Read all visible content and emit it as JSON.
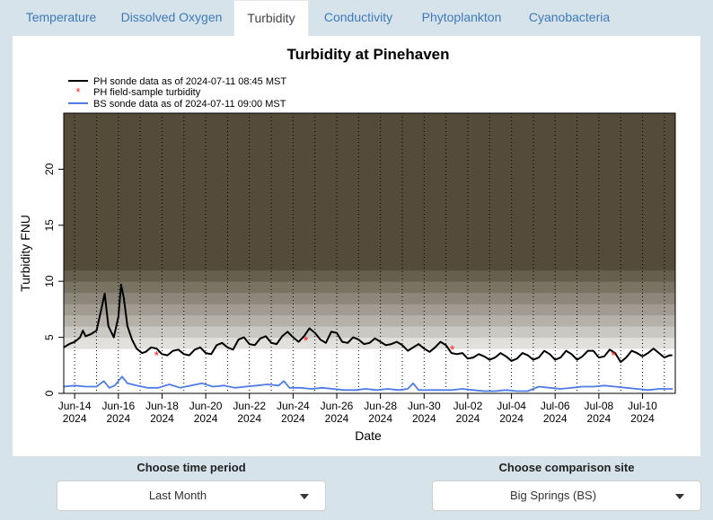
{
  "tabs": [
    {
      "label": "Temperature",
      "active": false
    },
    {
      "label": "Dissolved Oxygen",
      "active": false
    },
    {
      "label": "Turbidity",
      "active": true
    },
    {
      "label": "Conductivity",
      "active": false
    },
    {
      "label": "Phytoplankton",
      "active": false
    },
    {
      "label": "Cyanobacteria",
      "active": false
    }
  ],
  "controls": {
    "time_period_label": "Choose time period",
    "time_period_value": "Last Month",
    "comparison_label": "Choose comparison site",
    "comparison_value": "Big Springs (BS)"
  },
  "chart_data": {
    "type": "line",
    "title": "Turbidity at Pinehaven",
    "xlabel": "Date",
    "ylabel": "Turbidity FNU",
    "ylim": [
      0,
      25
    ],
    "yticks": [
      0,
      5,
      10,
      15,
      20
    ],
    "xlim": [
      "2024-06-13T12:00",
      "2024-07-11T12:00"
    ],
    "xticks": [
      {
        "date": "2024-06-14",
        "label": "Jun-14",
        "year": "2024"
      },
      {
        "date": "2024-06-16",
        "label": "Jun-16",
        "year": "2024"
      },
      {
        "date": "2024-06-18",
        "label": "Jun-18",
        "year": "2024"
      },
      {
        "date": "2024-06-20",
        "label": "Jun-20",
        "year": "2024"
      },
      {
        "date": "2024-06-22",
        "label": "Jun-22",
        "year": "2024"
      },
      {
        "date": "2024-06-24",
        "label": "Jun-24",
        "year": "2024"
      },
      {
        "date": "2024-06-26",
        "label": "Jun-26",
        "year": "2024"
      },
      {
        "date": "2024-06-28",
        "label": "Jun-28",
        "year": "2024"
      },
      {
        "date": "2024-06-30",
        "label": "Jun-30",
        "year": "2024"
      },
      {
        "date": "2024-07-02",
        "label": "Jul-02",
        "year": "2024"
      },
      {
        "date": "2024-07-04",
        "label": "Jul-04",
        "year": "2024"
      },
      {
        "date": "2024-07-06",
        "label": "Jul-06",
        "year": "2024"
      },
      {
        "date": "2024-07-08",
        "label": "Jul-08",
        "year": "2024"
      },
      {
        "date": "2024-07-10",
        "label": "Jul-10",
        "year": "2024"
      }
    ],
    "legend": [
      {
        "text": "PH sonde data as of 2024-07-11 08:45 MST",
        "type": "line",
        "color": "#000000"
      },
      {
        "text": "PH field-sample turbidity",
        "type": "point",
        "color": "#ff2020"
      },
      {
        "text": "BS sonde data as of 2024-07-11 09:00 MST",
        "type": "line",
        "color": "#4f7be8"
      }
    ],
    "legend_position": "top-left",
    "background": "gradient bands from white (low turbidity) to dark olive (high turbidity)",
    "vertical_gridlines": "dotted at midnight each day",
    "series": [
      {
        "name": "PH sonde data as of 2024-07-11 08:45 MST",
        "color": "#000000",
        "points": [
          [
            "2024-06-13T12:00",
            4.1
          ],
          [
            "2024-06-13T18:00",
            4.4
          ],
          [
            "2024-06-14T00:00",
            4.6
          ],
          [
            "2024-06-14T06:00",
            5.0
          ],
          [
            "2024-06-14T09:00",
            5.6
          ],
          [
            "2024-06-14T12:00",
            5.1
          ],
          [
            "2024-06-14T18:00",
            5.3
          ],
          [
            "2024-06-15T00:00",
            5.6
          ],
          [
            "2024-06-15T05:00",
            7.4
          ],
          [
            "2024-06-15T09:00",
            8.9
          ],
          [
            "2024-06-15T13:00",
            6.0
          ],
          [
            "2024-06-15T19:00",
            5.0
          ],
          [
            "2024-06-16T00:00",
            6.8
          ],
          [
            "2024-06-16T03:00",
            9.7
          ],
          [
            "2024-06-16T06:00",
            8.5
          ],
          [
            "2024-06-16T10:00",
            6.0
          ],
          [
            "2024-06-16T15:00",
            4.8
          ],
          [
            "2024-06-16T20:00",
            4.0
          ],
          [
            "2024-06-17T02:00",
            3.6
          ],
          [
            "2024-06-17T06:00",
            3.7
          ],
          [
            "2024-06-17T12:00",
            4.1
          ],
          [
            "2024-06-17T18:00",
            4.0
          ],
          [
            "2024-06-18T00:00",
            3.5
          ],
          [
            "2024-06-18T06:00",
            3.4
          ],
          [
            "2024-06-18T12:00",
            3.8
          ],
          [
            "2024-06-18T18:00",
            3.9
          ],
          [
            "2024-06-19T00:00",
            3.5
          ],
          [
            "2024-06-19T06:00",
            3.4
          ],
          [
            "2024-06-19T12:00",
            3.9
          ],
          [
            "2024-06-19T18:00",
            4.1
          ],
          [
            "2024-06-20T00:00",
            3.6
          ],
          [
            "2024-06-20T06:00",
            3.5
          ],
          [
            "2024-06-20T12:00",
            4.3
          ],
          [
            "2024-06-20T18:00",
            4.5
          ],
          [
            "2024-06-21T00:00",
            4.1
          ],
          [
            "2024-06-21T06:00",
            3.9
          ],
          [
            "2024-06-21T12:00",
            4.8
          ],
          [
            "2024-06-21T18:00",
            5.0
          ],
          [
            "2024-06-22T00:00",
            4.4
          ],
          [
            "2024-06-22T06:00",
            4.3
          ],
          [
            "2024-06-22T12:00",
            4.9
          ],
          [
            "2024-06-22T18:00",
            5.1
          ],
          [
            "2024-06-23T00:00",
            4.5
          ],
          [
            "2024-06-23T06:00",
            4.4
          ],
          [
            "2024-06-23T12:00",
            5.1
          ],
          [
            "2024-06-23T18:00",
            5.5
          ],
          [
            "2024-06-24T00:00",
            5.0
          ],
          [
            "2024-06-24T06:00",
            4.6
          ],
          [
            "2024-06-24T12:00",
            5.1
          ],
          [
            "2024-06-24T18:00",
            5.8
          ],
          [
            "2024-06-25T00:00",
            5.4
          ],
          [
            "2024-06-25T06:00",
            4.8
          ],
          [
            "2024-06-25T12:00",
            4.5
          ],
          [
            "2024-06-25T18:00",
            5.5
          ],
          [
            "2024-06-26T00:00",
            5.4
          ],
          [
            "2024-06-26T06:00",
            4.6
          ],
          [
            "2024-06-26T12:00",
            4.5
          ],
          [
            "2024-06-26T18:00",
            5.0
          ],
          [
            "2024-06-27T00:00",
            4.8
          ],
          [
            "2024-06-27T06:00",
            4.4
          ],
          [
            "2024-06-27T12:00",
            4.5
          ],
          [
            "2024-06-27T18:00",
            4.9
          ],
          [
            "2024-06-28T00:00",
            4.6
          ],
          [
            "2024-06-28T06:00",
            4.3
          ],
          [
            "2024-06-28T12:00",
            4.4
          ],
          [
            "2024-06-28T18:00",
            4.6
          ],
          [
            "2024-06-29T00:00",
            4.3
          ],
          [
            "2024-06-29T06:00",
            3.8
          ],
          [
            "2024-06-29T12:00",
            4.1
          ],
          [
            "2024-06-29T18:00",
            4.4
          ],
          [
            "2024-06-30T00:00",
            4.0
          ],
          [
            "2024-06-30T06:00",
            3.7
          ],
          [
            "2024-06-30T12:00",
            4.1
          ],
          [
            "2024-06-30T18:00",
            4.6
          ],
          [
            "2024-07-01T00:00",
            4.3
          ],
          [
            "2024-07-01T06:00",
            3.6
          ],
          [
            "2024-07-01T12:00",
            3.5
          ],
          [
            "2024-07-01T18:00",
            3.6
          ],
          [
            "2024-07-02T00:00",
            3.1
          ],
          [
            "2024-07-02T06:00",
            3.2
          ],
          [
            "2024-07-02T12:00",
            3.5
          ],
          [
            "2024-07-02T18:00",
            3.3
          ],
          [
            "2024-07-03T00:00",
            3.0
          ],
          [
            "2024-07-03T06:00",
            3.2
          ],
          [
            "2024-07-03T12:00",
            3.6
          ],
          [
            "2024-07-03T18:00",
            3.3
          ],
          [
            "2024-07-04T00:00",
            2.9
          ],
          [
            "2024-07-04T06:00",
            3.1
          ],
          [
            "2024-07-04T12:00",
            3.6
          ],
          [
            "2024-07-04T18:00",
            3.4
          ],
          [
            "2024-07-05T00:00",
            3.0
          ],
          [
            "2024-07-05T06:00",
            3.2
          ],
          [
            "2024-07-05T12:00",
            3.8
          ],
          [
            "2024-07-05T18:00",
            3.5
          ],
          [
            "2024-07-06T00:00",
            3.0
          ],
          [
            "2024-07-06T06:00",
            3.2
          ],
          [
            "2024-07-06T12:00",
            3.8
          ],
          [
            "2024-07-06T18:00",
            3.5
          ],
          [
            "2024-07-07T00:00",
            3.0
          ],
          [
            "2024-07-07T06:00",
            3.3
          ],
          [
            "2024-07-07T12:00",
            3.8
          ],
          [
            "2024-07-07T18:00",
            3.8
          ],
          [
            "2024-07-08T00:00",
            3.2
          ],
          [
            "2024-07-08T06:00",
            3.3
          ],
          [
            "2024-07-08T12:00",
            3.9
          ],
          [
            "2024-07-08T18:00",
            3.6
          ],
          [
            "2024-07-09T00:00",
            2.8
          ],
          [
            "2024-07-09T06:00",
            3.2
          ],
          [
            "2024-07-09T12:00",
            3.8
          ],
          [
            "2024-07-09T18:00",
            3.6
          ],
          [
            "2024-07-10T00:00",
            3.3
          ],
          [
            "2024-07-10T06:00",
            3.6
          ],
          [
            "2024-07-10T12:00",
            4.0
          ],
          [
            "2024-07-10T18:00",
            3.6
          ],
          [
            "2024-07-11T00:00",
            3.2
          ],
          [
            "2024-07-11T06:00",
            3.4
          ],
          [
            "2024-07-11T08:45",
            3.4
          ]
        ]
      },
      {
        "name": "BS sonde data as of 2024-07-11 09:00 MST",
        "color": "#4f7be8",
        "points": [
          [
            "2024-06-13T12:00",
            0.6
          ],
          [
            "2024-06-14T00:00",
            0.7
          ],
          [
            "2024-06-14T12:00",
            0.6
          ],
          [
            "2024-06-15T00:00",
            0.6
          ],
          [
            "2024-06-15T08:00",
            1.1
          ],
          [
            "2024-06-15T14:00",
            0.5
          ],
          [
            "2024-06-15T20:00",
            0.7
          ],
          [
            "2024-06-16T04:00",
            1.5
          ],
          [
            "2024-06-16T10:00",
            0.9
          ],
          [
            "2024-06-16T20:00",
            0.7
          ],
          [
            "2024-06-17T08:00",
            0.5
          ],
          [
            "2024-06-17T20:00",
            0.5
          ],
          [
            "2024-06-18T08:00",
            0.8
          ],
          [
            "2024-06-18T20:00",
            0.5
          ],
          [
            "2024-06-19T08:00",
            0.7
          ],
          [
            "2024-06-19T20:00",
            0.9
          ],
          [
            "2024-06-20T08:00",
            0.6
          ],
          [
            "2024-06-20T20:00",
            0.7
          ],
          [
            "2024-06-21T08:00",
            0.5
          ],
          [
            "2024-06-21T20:00",
            0.6
          ],
          [
            "2024-06-22T08:00",
            0.7
          ],
          [
            "2024-06-22T20:00",
            0.8
          ],
          [
            "2024-06-23T08:00",
            0.7
          ],
          [
            "2024-06-23T14:00",
            1.1
          ],
          [
            "2024-06-23T20:00",
            0.5
          ],
          [
            "2024-06-24T08:00",
            0.5
          ],
          [
            "2024-06-24T20:00",
            0.4
          ],
          [
            "2024-06-25T08:00",
            0.5
          ],
          [
            "2024-06-25T20:00",
            0.4
          ],
          [
            "2024-06-26T08:00",
            0.3
          ],
          [
            "2024-06-26T20:00",
            0.3
          ],
          [
            "2024-06-27T08:00",
            0.4
          ],
          [
            "2024-06-27T20:00",
            0.3
          ],
          [
            "2024-06-28T08:00",
            0.4
          ],
          [
            "2024-06-28T20:00",
            0.3
          ],
          [
            "2024-06-29T06:00",
            0.4
          ],
          [
            "2024-06-29T12:00",
            0.9
          ],
          [
            "2024-06-29T18:00",
            0.3
          ],
          [
            "2024-06-30T06:00",
            0.3
          ],
          [
            "2024-06-30T18:00",
            0.3
          ],
          [
            "2024-07-01T06:00",
            0.3
          ],
          [
            "2024-07-01T18:00",
            0.4
          ],
          [
            "2024-07-02T06:00",
            0.3
          ],
          [
            "2024-07-02T18:00",
            0.2
          ],
          [
            "2024-07-03T06:00",
            0.2
          ],
          [
            "2024-07-03T18:00",
            0.3
          ],
          [
            "2024-07-04T06:00",
            0.2
          ],
          [
            "2024-07-04T18:00",
            0.2
          ],
          [
            "2024-07-05T06:00",
            0.6
          ],
          [
            "2024-07-05T18:00",
            0.5
          ],
          [
            "2024-07-06T06:00",
            0.4
          ],
          [
            "2024-07-06T18:00",
            0.5
          ],
          [
            "2024-07-07T06:00",
            0.6
          ],
          [
            "2024-07-07T18:00",
            0.6
          ],
          [
            "2024-07-08T06:00",
            0.7
          ],
          [
            "2024-07-08T18:00",
            0.6
          ],
          [
            "2024-07-09T06:00",
            0.5
          ],
          [
            "2024-07-09T18:00",
            0.4
          ],
          [
            "2024-07-10T06:00",
            0.3
          ],
          [
            "2024-07-10T18:00",
            0.4
          ],
          [
            "2024-07-11T09:00",
            0.4
          ]
        ]
      }
    ],
    "field_samples": {
      "name": "PH field-sample turbidity",
      "color": "#ff2020",
      "points": [
        [
          "2024-06-17T18:00",
          3.5
        ],
        [
          "2024-06-24T14:00",
          4.8
        ],
        [
          "2024-07-01T07:00",
          4.0
        ],
        [
          "2024-07-08T16:00",
          3.5
        ]
      ]
    }
  }
}
